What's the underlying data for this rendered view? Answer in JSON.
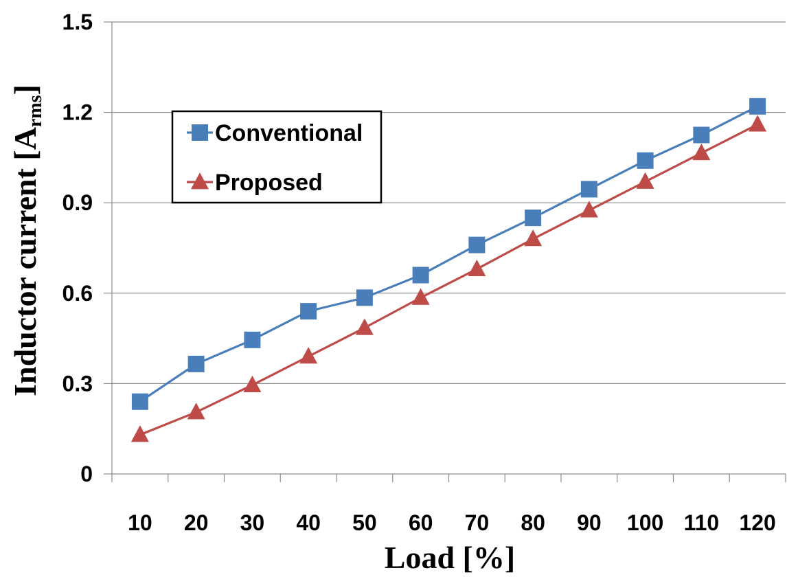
{
  "chart_data": {
    "type": "line",
    "categories": [
      "10",
      "20",
      "30",
      "40",
      "50",
      "60",
      "70",
      "80",
      "90",
      "100",
      "110",
      "120"
    ],
    "series": [
      {
        "name": "Conventional",
        "color": "#4a7ebb",
        "marker": "square",
        "values": [
          0.24,
          0.365,
          0.445,
          0.54,
          0.585,
          0.66,
          0.76,
          0.85,
          0.945,
          1.04,
          1.125,
          1.22
        ]
      },
      {
        "name": "Proposed",
        "color": "#be4b48",
        "marker": "triangle",
        "values": [
          0.13,
          0.205,
          0.295,
          0.39,
          0.485,
          0.585,
          0.68,
          0.78,
          0.875,
          0.97,
          1.065,
          1.16
        ]
      }
    ],
    "xlabel": "Load [%]",
    "ylabel": {
      "main": "Inductor current [A",
      "sub": "rms",
      "close": "]"
    },
    "ylim": [
      0,
      1.5
    ],
    "yticks": [
      "0",
      "0.3",
      "0.6",
      "0.9",
      "1.2",
      "1.5"
    ],
    "grid": "horizontal",
    "legend": "top-left"
  }
}
